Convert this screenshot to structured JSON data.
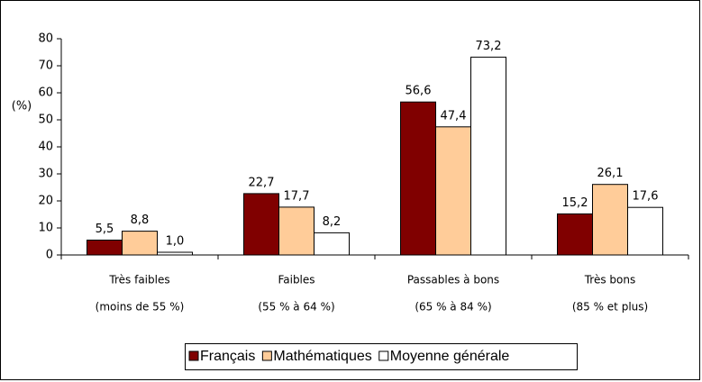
{
  "chart_data": {
    "type": "bar",
    "y_label": "(%)",
    "categories": [
      [
        "Très faibles",
        "(moins de 55 %)"
      ],
      [
        "Faibles",
        "(55 % à 64 %)"
      ],
      [
        "Passables à bons",
        "(65 % à 84 %)"
      ],
      [
        "Très bons",
        "(85 % et plus)"
      ]
    ],
    "series": [
      {
        "name": "Français",
        "color": "#800000",
        "values": [
          5.5,
          22.7,
          56.6,
          15.2
        ],
        "value_labels": [
          "5,5",
          "22,7",
          "56,6",
          "15,2"
        ]
      },
      {
        "name": "Mathématiques",
        "color": "#ffcc99",
        "values": [
          8.8,
          17.7,
          47.4,
          26.1
        ],
        "value_labels": [
          "8,8",
          "17,7",
          "47,4",
          "26,1"
        ]
      },
      {
        "name": "Moyenne générale",
        "color": "#ffffff",
        "values": [
          1.0,
          8.2,
          73.2,
          17.6
        ],
        "value_labels": [
          "1,0",
          "8,2",
          "73,2",
          "17,6"
        ]
      }
    ],
    "ylim": [
      0,
      80
    ],
    "yticks": [
      0,
      10,
      20,
      30,
      40,
      50,
      60,
      70,
      80
    ],
    "grid": false,
    "legend": "bottom"
  }
}
